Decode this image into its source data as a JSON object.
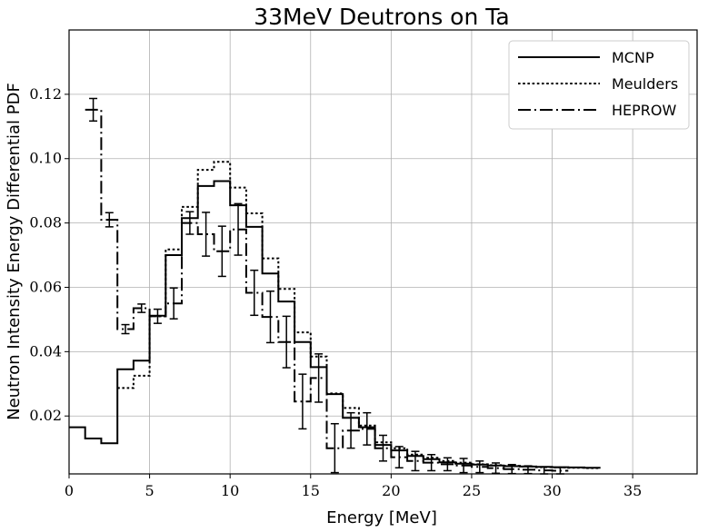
{
  "chart_data": {
    "type": "line",
    "title": "33MeV Deutrons on Ta",
    "xlabel": "Energy [MeV]",
    "ylabel": "Neutron Intensity Energy Differential PDF",
    "xlim": [
      0,
      39
    ],
    "ylim": [
      0.002,
      0.14
    ],
    "xticks": [
      0,
      5,
      10,
      15,
      20,
      25,
      30,
      35
    ],
    "xtick_labels": [
      "0",
      "5",
      "10",
      "15",
      "20",
      "25",
      "30",
      "35"
    ],
    "yticks": [
      0.02,
      0.04,
      0.06,
      0.08,
      0.1,
      0.12
    ],
    "ytick_labels": [
      "0.02",
      "0.04",
      "0.06",
      "0.08",
      "0.10",
      "0.12"
    ],
    "grid": true,
    "legend_position": "top-right",
    "series": [
      {
        "name": "MCNP",
        "style": "solid",
        "color": "#000000",
        "edges": [
          0,
          1,
          2,
          3,
          4,
          5,
          6,
          7,
          8,
          9,
          10,
          11,
          12,
          13,
          14,
          15,
          16,
          17,
          18,
          19,
          20,
          21,
          22,
          23,
          24,
          25,
          26,
          27,
          28,
          29,
          30,
          31,
          32,
          33
        ],
        "values": [
          0.0165,
          0.013,
          0.0115,
          0.0345,
          0.0372,
          0.0512,
          0.07,
          0.0815,
          0.0915,
          0.093,
          0.0855,
          0.0788,
          0.0643,
          0.0556,
          0.043,
          0.0352,
          0.0268,
          0.0194,
          0.0165,
          0.011,
          0.0093,
          0.0076,
          0.0066,
          0.0056,
          0.0052,
          0.0049,
          0.0046,
          0.0044,
          0.0043,
          0.0042,
          0.0041,
          0.004,
          0.0039
        ]
      },
      {
        "name": "Meulders",
        "style": "dotted",
        "color": "#000000",
        "edges": [
          3,
          4,
          5,
          6,
          7,
          8,
          9,
          10,
          11,
          12,
          13,
          14,
          15,
          16,
          17,
          18,
          19,
          20,
          21,
          22,
          23,
          24,
          25,
          26,
          27,
          28,
          29,
          30,
          31,
          32,
          33
        ],
        "values": [
          0.0287,
          0.0325,
          0.051,
          0.0718,
          0.085,
          0.0965,
          0.099,
          0.091,
          0.083,
          0.069,
          0.0595,
          0.046,
          0.0385,
          0.027,
          0.0225,
          0.017,
          0.0118,
          0.01,
          0.008,
          0.007,
          0.006,
          0.0055,
          0.005,
          0.0047,
          0.0045,
          0.0043,
          0.0041,
          0.004,
          0.0039,
          0.0038
        ]
      },
      {
        "name": "HEPROW",
        "style": "dashdot",
        "color": "#000000",
        "edges": [
          1,
          2,
          3,
          4,
          5,
          6,
          7,
          8,
          9,
          10,
          11,
          12,
          13,
          14,
          15,
          16,
          17,
          18,
          19,
          20,
          21,
          22,
          23,
          24,
          25,
          26,
          27,
          28,
          29,
          30,
          31
        ],
        "values": [
          0.1152,
          0.081,
          0.047,
          0.0535,
          0.051,
          0.055,
          0.08,
          0.0765,
          0.0712,
          0.078,
          0.0583,
          0.0508,
          0.043,
          0.0245,
          0.0318,
          0.01,
          0.0155,
          0.016,
          0.01,
          0.0072,
          0.006,
          0.0055,
          0.005,
          0.0046,
          0.0042,
          0.0038,
          0.0035,
          0.0033,
          0.0031,
          0.003
        ],
        "errors": [
          0.0035,
          0.0022,
          0.0014,
          0.0013,
          0.0022,
          0.0048,
          0.0035,
          0.0068,
          0.0078,
          0.008,
          0.007,
          0.008,
          0.008,
          0.0085,
          0.0075,
          0.0076,
          0.0055,
          0.005,
          0.004,
          0.0033,
          0.003,
          0.0025,
          0.002,
          0.0022,
          0.0018,
          0.0016,
          0.0014,
          0.0012,
          0.0011,
          0.001
        ]
      }
    ]
  }
}
